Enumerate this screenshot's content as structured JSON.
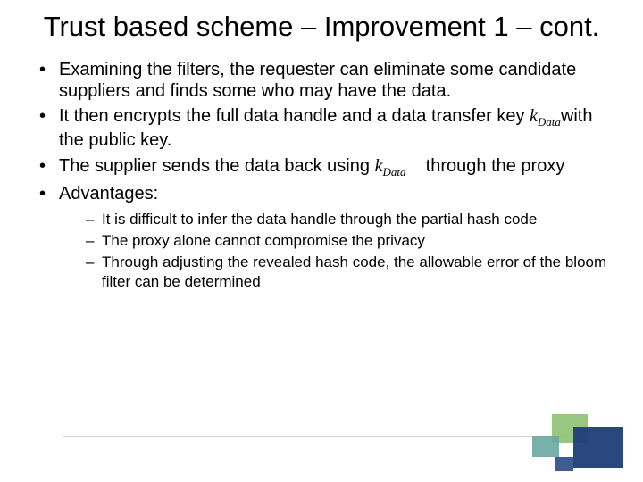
{
  "title": "Trust based scheme – Improvement 1 – cont.",
  "bullets": {
    "b0a": "Examining the filters, the requester can eliminate some candidate suppliers and finds some who may have the data.",
    "b1a": "It then encrypts the full data handle and a data transfer key ",
    "b1b": "with the public key.",
    "b2a": "The supplier sends the data back using ",
    "b2b": " through the proxy",
    "b3": "Advantages:"
  },
  "kdata_main": "k",
  "kdata_sub": "Data",
  "subs": {
    "s0": "It is difficult to infer the data handle through the partial hash code",
    "s1": "The proxy alone cannot compromise the privacy",
    "s2": "Through adjusting the revealed hash code, the allowable error of the bloom filter can be determined"
  },
  "colors": {
    "line": "#c9dcbf",
    "navy": "#1f3e78",
    "green": "#8fc277",
    "teal": "#6aa7a0"
  }
}
